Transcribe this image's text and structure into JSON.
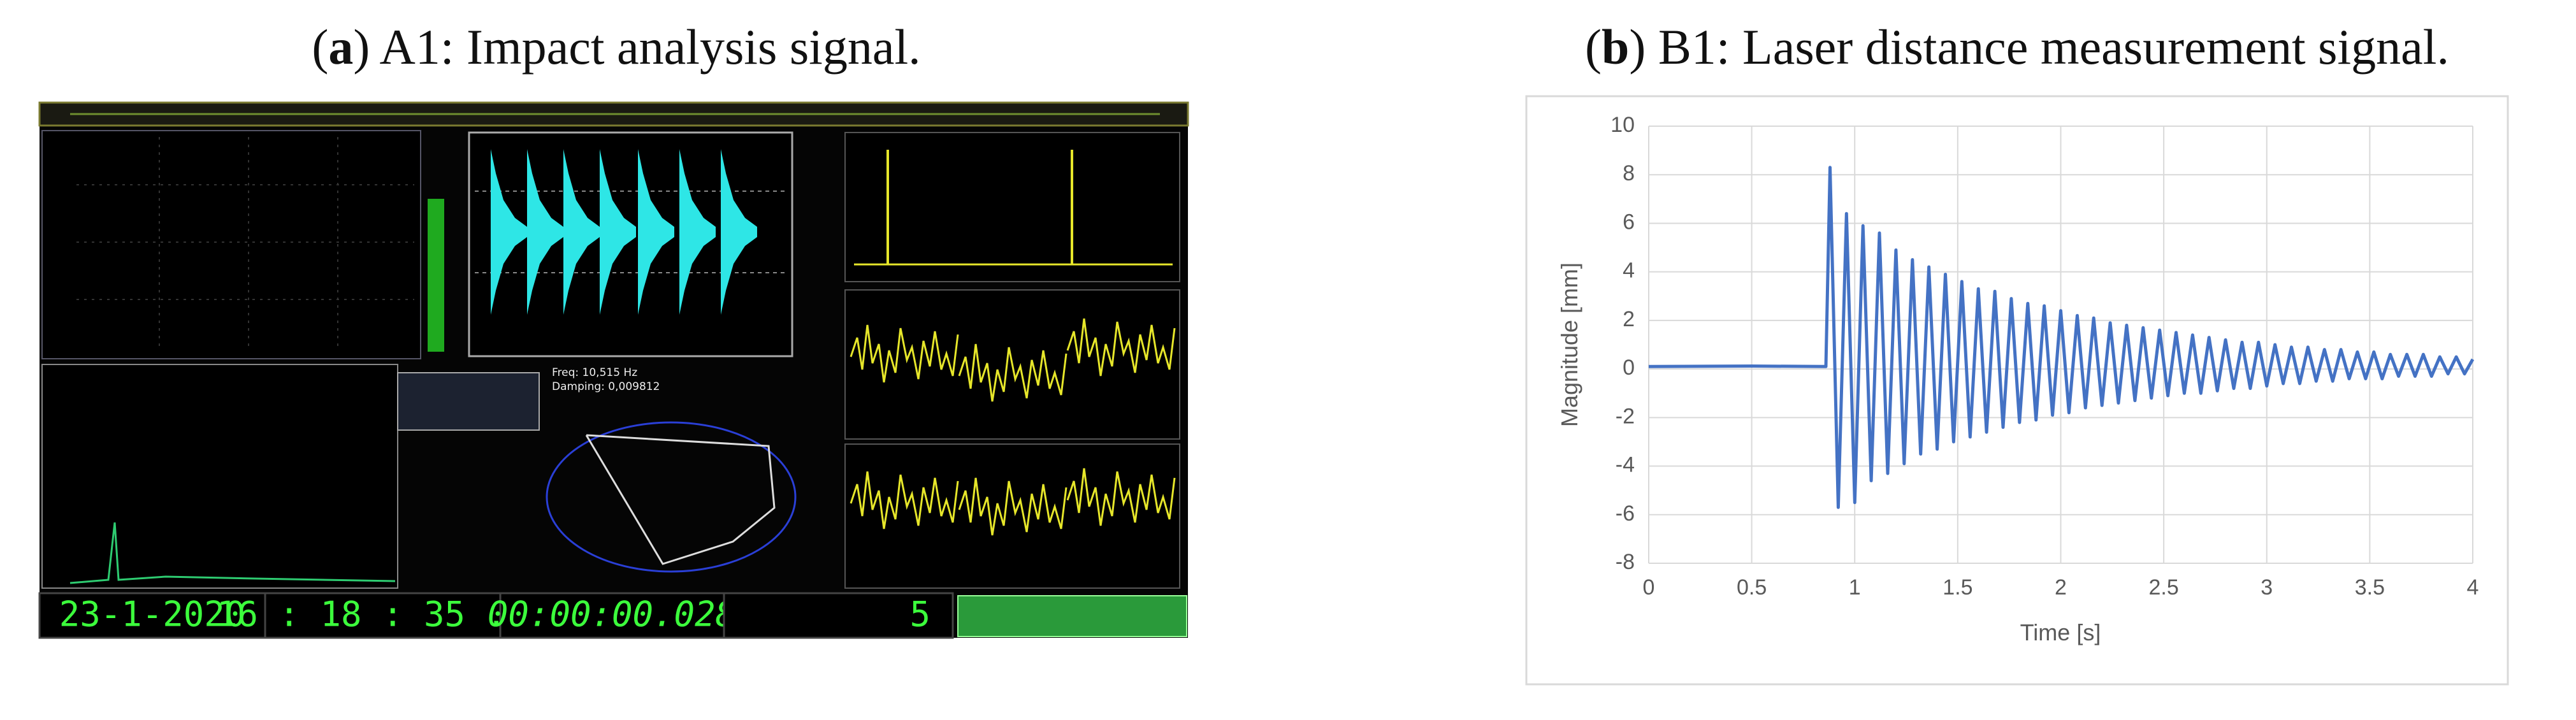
{
  "figure": {
    "panels": [
      {
        "caption": [
          "(",
          "a",
          ") A1: Impact analysis signal."
        ]
      },
      {
        "caption": [
          "(",
          "b",
          ") B1: Laser distance measurement signal."
        ]
      }
    ]
  },
  "screenshot": {
    "date": "23-1-2020",
    "time": "16 : 18 : 35 . 5",
    "elapsed": "00:00:00.028",
    "count": "5",
    "freq": "Freq: 10,515 Hz",
    "damping": "Damping: 0,009812"
  },
  "chart_data": {
    "type": "line",
    "x_label": "Time [s]",
    "y_label": "Magnitude [mm]",
    "color": "#4472c4",
    "grid": true,
    "xlim": [
      0,
      4
    ],
    "ylim": [
      -8,
      10
    ],
    "xticks": [
      0,
      0.5,
      1,
      1.5,
      2,
      2.5,
      3,
      3.5,
      4
    ],
    "yticks": [
      -8,
      -6,
      -4,
      -2,
      0,
      2,
      4,
      6,
      8,
      10
    ],
    "x": [
      0,
      0.5,
      0.86,
      0.88,
      0.92,
      0.96,
      1.0,
      1.04,
      1.08,
      1.12,
      1.16,
      1.2,
      1.24,
      1.28,
      1.32,
      1.36,
      1.4,
      1.44,
      1.48,
      1.52,
      1.56,
      1.6,
      1.64,
      1.68,
      1.72,
      1.76,
      1.8,
      1.84,
      1.88,
      1.92,
      1.96,
      2.0,
      2.04,
      2.08,
      2.12,
      2.16,
      2.2,
      2.24,
      2.28,
      2.32,
      2.36,
      2.4,
      2.44,
      2.48,
      2.52,
      2.56,
      2.6,
      2.64,
      2.68,
      2.72,
      2.76,
      2.8,
      2.84,
      2.88,
      2.92,
      2.96,
      3.0,
      3.04,
      3.08,
      3.12,
      3.16,
      3.2,
      3.24,
      3.28,
      3.32,
      3.36,
      3.4,
      3.44,
      3.48,
      3.52,
      3.56,
      3.6,
      3.64,
      3.68,
      3.72,
      3.76,
      3.8,
      3.84,
      3.88,
      3.92,
      3.96,
      4.0
    ],
    "values": [
      0.1,
      0.12,
      0.1,
      8.3,
      -5.7,
      6.4,
      -5.5,
      5.9,
      -4.6,
      5.6,
      -4.3,
      4.9,
      -3.9,
      4.5,
      -3.5,
      4.2,
      -3.3,
      3.9,
      -3.0,
      3.6,
      -2.8,
      3.3,
      -2.6,
      3.2,
      -2.4,
      2.9,
      -2.2,
      2.7,
      -2.1,
      2.6,
      -1.9,
      2.4,
      -1.8,
      2.2,
      -1.6,
      2.1,
      -1.5,
      1.9,
      -1.4,
      1.8,
      -1.3,
      1.7,
      -1.2,
      1.6,
      -1.1,
      1.5,
      -1.0,
      1.4,
      -1.0,
      1.3,
      -0.9,
      1.2,
      -0.8,
      1.1,
      -0.8,
      1.1,
      -0.7,
      1.0,
      -0.6,
      0.9,
      -0.6,
      0.9,
      -0.5,
      0.8,
      -0.5,
      0.8,
      -0.4,
      0.7,
      -0.4,
      0.7,
      -0.4,
      0.6,
      -0.3,
      0.6,
      -0.3,
      0.6,
      -0.3,
      0.5,
      -0.2,
      0.5,
      -0.2,
      0.4
    ]
  }
}
